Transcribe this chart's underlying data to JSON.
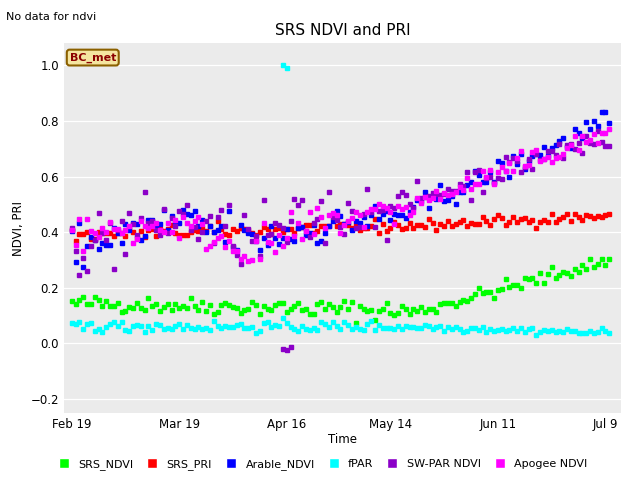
{
  "title": "SRS NDVI and PRI",
  "subtitle": "No data for ndvi",
  "ylabel": "NDVI, PRI",
  "xlabel": "Time",
  "annotation": "BC_met",
  "ylim": [
    -0.25,
    1.08
  ],
  "series": {
    "SRS_NDVI": {
      "color": "#00ff00"
    },
    "SRS_PRI": {
      "color": "#ff0000"
    },
    "Arable_NDVI": {
      "color": "#0000ff"
    },
    "fPAR": {
      "color": "#00ffff"
    },
    "SW_PAR_NDVI": {
      "color": "#8b00c8"
    },
    "Apogee_NDVI": {
      "color": "#ff00ff"
    }
  },
  "x_tick_labels": [
    "Feb 19",
    "Mar 19",
    "Apr 16",
    "May 14",
    "Jun 11",
    "Jul 9"
  ],
  "x_tick_days": [
    0,
    28,
    56,
    83,
    111,
    139
  ],
  "yticks": [
    -0.2,
    0.0,
    0.2,
    0.4,
    0.6,
    0.8,
    1.0
  ]
}
